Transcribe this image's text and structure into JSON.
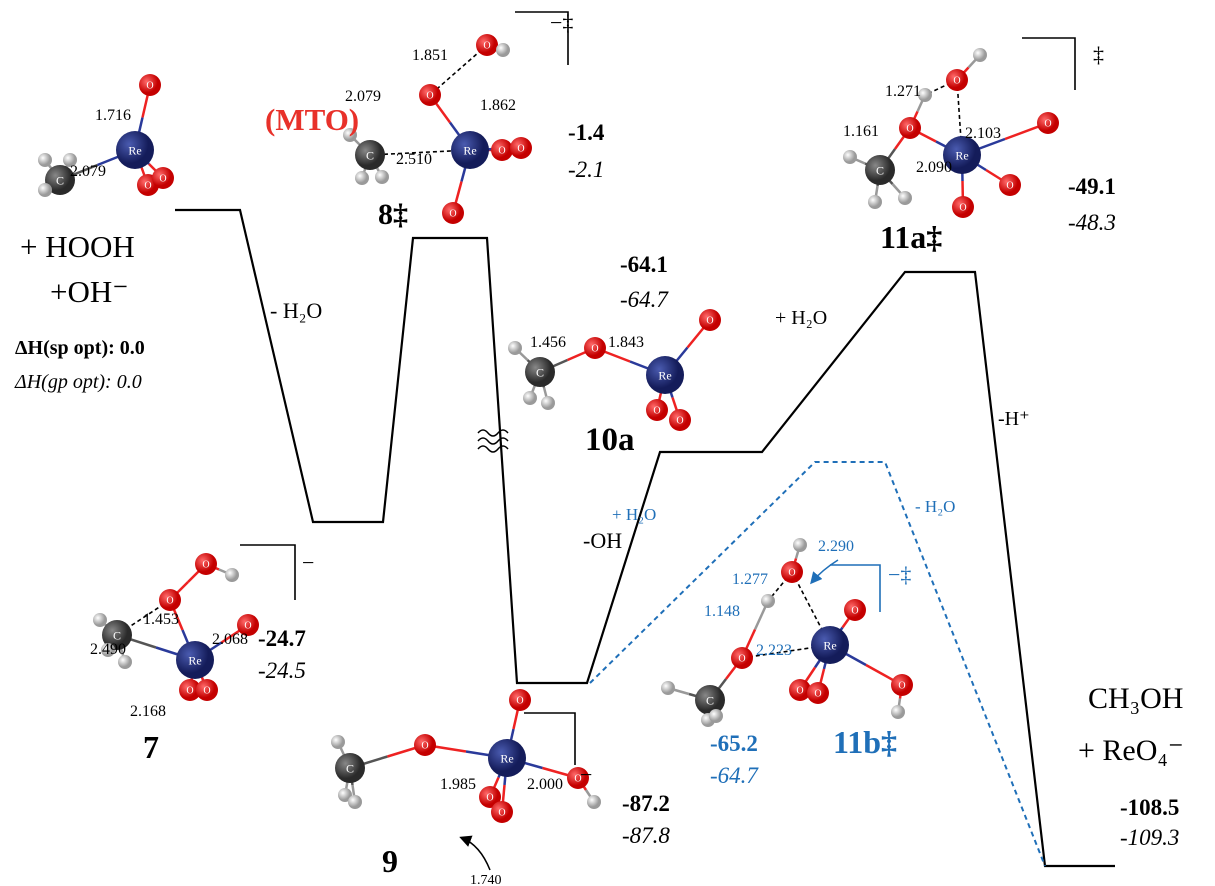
{
  "reactants": {
    "line1": "+ HOOH",
    "line2": "+OH⁻",
    "dh_sp": "ΔH(sp opt): 0.0",
    "dh_gp": "ΔH(gp opt): 0.0"
  },
  "atoms": {
    "C": "C",
    "Re": "Re",
    "O": "O"
  },
  "species": {
    "mto": {
      "label": "(MTO)",
      "bonds": [
        "1.716",
        "2.079"
      ]
    },
    "ts8": {
      "label": "8‡",
      "charge": "−‡",
      "e_sp": "-1.4",
      "e_gp": "-2.1",
      "bonds": [
        "1.851",
        "2.079",
        "1.862",
        "2.510"
      ]
    },
    "s7": {
      "label": "7",
      "charge": "−",
      "e_sp": "-24.7",
      "e_gp": "-24.5",
      "bonds": [
        "1.453",
        "2.490",
        "2.068",
        "2.168"
      ]
    },
    "s9": {
      "label": "9",
      "charge": "−",
      "e_sp": "-87.2",
      "e_gp": "-87.8",
      "bonds": [
        "1.985",
        "2.000",
        "1.740"
      ]
    },
    "s10a": {
      "label": "10a",
      "e_sp": "-64.1",
      "e_gp": "-64.7",
      "bonds": [
        "1.456",
        "1.843"
      ]
    },
    "ts11a": {
      "label": "11a‡",
      "charge": "‡",
      "e_sp": "-49.1",
      "e_gp": "-48.3",
      "bonds": [
        "1.271",
        "1.161",
        "2.103",
        "2.090"
      ]
    },
    "ts11b": {
      "label": "11b‡",
      "charge": "−‡",
      "e_sp": "-65.2",
      "e_gp": "-64.7",
      "bonds": [
        "2.290",
        "1.277",
        "1.148",
        "2.223"
      ]
    },
    "products": {
      "line1": "CH₃OH",
      "line2": "+ ReO₄⁻",
      "e_sp": "-108.5",
      "e_gp": "-109.3"
    }
  },
  "steps": {
    "minus_h2o": "- H₂O",
    "plus_h2o": "+ H₂O",
    "minus_h_plus": "-H⁺",
    "minus_oh": "-OH",
    "blue_plus_h2o": "+ H₂O",
    "blue_minus_h2o": "- H₂O"
  }
}
